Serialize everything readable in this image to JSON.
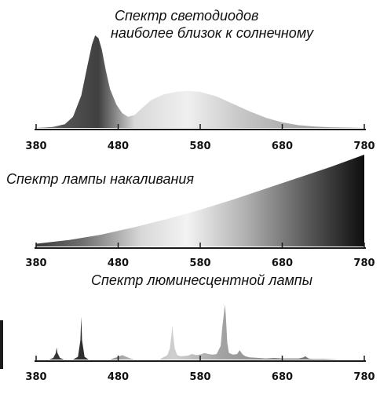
{
  "colors": {
    "axis": "#1a1a1a",
    "text": "#111111"
  },
  "chart_data": [
    {
      "type": "area",
      "title_lines": [
        "Спектр светодиодов",
        "наиболее близок к солнечному"
      ],
      "xlabel": "",
      "ylabel": "",
      "xlim": [
        380,
        780
      ],
      "ylim": [
        0,
        1
      ],
      "x_ticks": [
        "380",
        "480",
        "580",
        "680",
        "780"
      ],
      "series": [
        {
          "x": [
            380,
            400,
            415,
            425,
            435,
            442,
            448,
            452,
            456,
            460,
            465,
            470,
            478,
            485,
            492,
            500,
            510,
            520,
            535,
            550,
            565,
            580,
            600,
            620,
            640,
            660,
            680,
            700,
            720,
            740,
            760,
            780
          ],
          "y": [
            0,
            0.01,
            0.04,
            0.12,
            0.35,
            0.65,
            0.9,
            1.0,
            0.97,
            0.85,
            0.62,
            0.42,
            0.25,
            0.16,
            0.12,
            0.14,
            0.22,
            0.3,
            0.36,
            0.39,
            0.4,
            0.39,
            0.34,
            0.26,
            0.18,
            0.11,
            0.06,
            0.03,
            0.015,
            0.007,
            0.003,
            0
          ]
        }
      ]
    },
    {
      "type": "area",
      "title": "Спектр лампы накаливания",
      "xlabel": "",
      "ylabel": "",
      "xlim": [
        380,
        780
      ],
      "ylim": [
        0,
        1
      ],
      "x_ticks": [
        "380",
        "480",
        "580",
        "680",
        "780"
      ],
      "series": [
        {
          "x": [
            380,
            420,
            460,
            500,
            540,
            580,
            620,
            660,
            700,
            740,
            780
          ],
          "y": [
            0.03,
            0.07,
            0.13,
            0.21,
            0.3,
            0.4,
            0.51,
            0.63,
            0.75,
            0.87,
            1.0
          ]
        }
      ]
    },
    {
      "type": "area",
      "title": "Спектр люминесцентной лампы",
      "xlabel": "",
      "ylabel": "",
      "xlim": [
        380,
        780
      ],
      "ylim": [
        0,
        1
      ],
      "x_ticks": [
        "380",
        "480",
        "580",
        "680",
        "780"
      ],
      "series": [
        {
          "x": [
            380,
            396,
            401,
            404,
            405,
            406,
            409,
            414,
            425,
            431,
            434,
            435,
            436,
            439,
            444,
            470,
            480,
            485,
            490,
            495,
            500,
            530,
            540,
            543,
            545,
            546,
            547,
            549,
            552,
            556,
            565,
            570,
            575,
            580,
            585,
            590,
            595,
            600,
            605,
            607,
            609,
            610,
            611,
            612,
            613,
            615,
            620,
            625,
            628,
            632,
            635,
            640,
            650,
            660,
            670,
            680,
            700,
            706,
            708,
            710,
            712,
            716,
            730,
            750,
            780
          ],
          "y": [
            0,
            0,
            0.03,
            0.12,
            0.22,
            0.12,
            0.03,
            0,
            0,
            0.05,
            0.35,
            0.78,
            0.35,
            0.05,
            0,
            0,
            0.05,
            0.08,
            0.05,
            0.02,
            0,
            0,
            0.08,
            0.2,
            0.45,
            0.62,
            0.45,
            0.2,
            0.08,
            0.06,
            0.07,
            0.1,
            0.08,
            0.09,
            0.12,
            0.1,
            0.09,
            0.1,
            0.25,
            0.6,
            0.85,
            1.0,
            0.85,
            0.6,
            0.3,
            0.12,
            0.09,
            0.1,
            0.17,
            0.09,
            0.06,
            0.04,
            0.03,
            0.02,
            0.03,
            0.02,
            0.02,
            0.04,
            0.06,
            0.04,
            0.02,
            0.01,
            0.01,
            0,
            0
          ]
        }
      ]
    }
  ]
}
